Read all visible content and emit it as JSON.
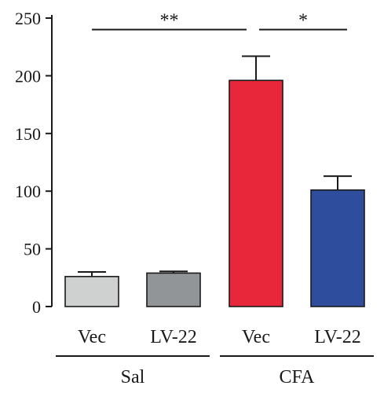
{
  "chart_data": {
    "type": "bar",
    "title": "",
    "xlabel": "",
    "ylabel": "",
    "ylim": [
      0,
      250
    ],
    "yticks": [
      0,
      50,
      100,
      150,
      200,
      250
    ],
    "grid": false,
    "legend": "none",
    "categories": [
      "Vec",
      "LV-22",
      "Vec",
      "LV-22"
    ],
    "values": [
      26,
      29,
      196,
      101
    ],
    "errors": [
      4,
      1.5,
      21,
      12
    ],
    "colors": [
      "#cfd1d0",
      "#929597",
      "#e8273a",
      "#2e4d9c"
    ],
    "groups": [
      {
        "label": "Sal",
        "categories": [
          0,
          1
        ]
      },
      {
        "label": "CFA",
        "categories": [
          2,
          3
        ]
      }
    ],
    "significance": [
      {
        "from": 0,
        "to": 2,
        "label": "**",
        "y": 240
      },
      {
        "from": 2,
        "to": 3,
        "label": "*",
        "y": 240
      }
    ]
  }
}
